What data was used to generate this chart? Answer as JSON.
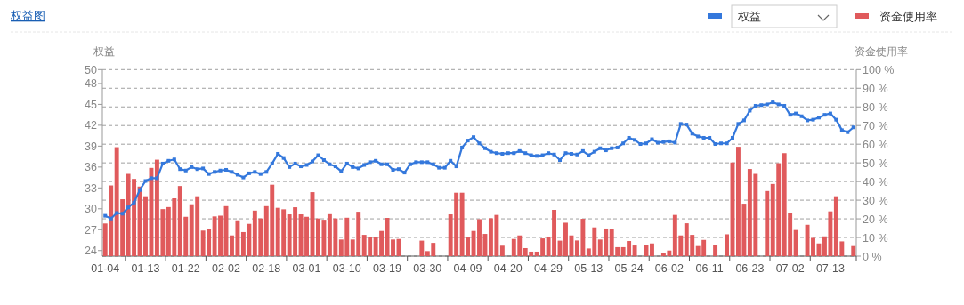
{
  "chart_data": {
    "type": "bar",
    "title": "权益图",
    "ylabel": "权益",
    "y2label": "资金使用率",
    "categories": [
      "01-04",
      null,
      null,
      null,
      null,
      null,
      null,
      "01-13",
      null,
      null,
      null,
      null,
      null,
      null,
      "01-22",
      null,
      null,
      null,
      null,
      null,
      null,
      "02-02",
      null,
      null,
      null,
      null,
      null,
      null,
      "02-18",
      null,
      null,
      null,
      null,
      null,
      null,
      "03-01",
      null,
      null,
      null,
      null,
      null,
      null,
      "03-10",
      null,
      null,
      null,
      null,
      null,
      null,
      "03-19",
      null,
      null,
      null,
      null,
      null,
      null,
      "03-30",
      null,
      null,
      null,
      null,
      null,
      null,
      "04-09",
      null,
      null,
      null,
      null,
      null,
      null,
      "04-20",
      null,
      null,
      null,
      null,
      null,
      null,
      "04-29",
      null,
      null,
      null,
      null,
      null,
      null,
      "05-13",
      null,
      null,
      null,
      null,
      null,
      null,
      "05-24",
      null,
      null,
      null,
      null,
      null,
      null,
      "06-02",
      null,
      null,
      null,
      null,
      null,
      null,
      "06-11",
      null,
      null,
      null,
      null,
      null,
      null,
      "06-23",
      null,
      null,
      null,
      null,
      null,
      null,
      "07-02",
      null,
      null,
      null,
      null,
      null,
      null,
      "07-13",
      null,
      null,
      null,
      null
    ],
    "series": [
      {
        "name": "权益",
        "type": "line",
        "color": "#3478dc",
        "values": [
          29.0,
          28.6,
          29.4,
          29.3,
          30.2,
          30.9,
          32.7,
          34.0,
          34.4,
          34.4,
          36.5,
          36.9,
          37.1,
          35.7,
          35.5,
          36.0,
          35.7,
          35.8,
          35.0,
          35.3,
          35.5,
          35.6,
          35.3,
          34.9,
          34.5,
          35.1,
          35.3,
          35.0,
          35.3,
          36.5,
          37.9,
          37.3,
          36.0,
          36.5,
          36.1,
          36.3,
          36.8,
          37.7,
          37.0,
          36.4,
          36.1,
          35.4,
          36.5,
          36.0,
          35.8,
          36.3,
          36.7,
          36.9,
          36.4,
          36.4,
          35.6,
          35.7,
          35.2,
          36.4,
          36.7,
          36.7,
          36.7,
          36.4,
          35.9,
          35.9,
          36.9,
          36.1,
          38.8,
          39.8,
          40.3,
          39.4,
          38.7,
          38.2,
          38.0,
          37.9,
          38.0,
          38.0,
          38.3,
          38.0,
          37.7,
          37.6,
          37.7,
          38.0,
          37.8,
          37.0,
          38.0,
          37.9,
          37.8,
          38.3,
          37.7,
          38.2,
          38.7,
          38.4,
          38.7,
          38.8,
          39.4,
          40.2,
          39.9,
          39.3,
          39.4,
          40.0,
          39.5,
          39.6,
          39.7,
          39.5,
          42.2,
          42.1,
          40.8,
          40.4,
          40.2,
          40.2,
          39.3,
          39.4,
          39.4,
          40.2,
          42.2,
          42.7,
          44.1,
          44.8,
          44.9,
          45.0,
          45.3,
          45.0,
          44.8,
          43.5,
          43.7,
          43.3,
          42.7,
          42.8,
          43.1,
          43.5,
          43.7,
          42.8,
          41.3,
          41.0,
          41.7
        ]
      },
      {
        "name": "资金使用率",
        "axis": "y2",
        "color": "#e05a5c",
        "values": [
          17.5,
          37.9,
          58.4,
          30.5,
          44.1,
          41.4,
          37.3,
          32.1,
          47.3,
          51.7,
          25.2,
          26.3,
          31.0,
          37.6,
          21.1,
          27.8,
          32.1,
          13.7,
          14.4,
          21.3,
          21.7,
          26.8,
          11.1,
          19.2,
          12.9,
          17.3,
          24.4,
          20.2,
          26.8,
          38.3,
          25.9,
          25.1,
          22.4,
          26.2,
          22.4,
          21.1,
          34.3,
          20.2,
          19.5,
          22.5,
          20.2,
          8.9,
          20.6,
          8.9,
          23.8,
          11.4,
          10.3,
          10.3,
          13.5,
          20.5,
          8.9,
          9.2,
          null,
          null,
          null,
          8.3,
          2.7,
          7.1,
          null,
          null,
          22.4,
          34.0,
          34.0,
          10.0,
          13.5,
          19.8,
          11.9,
          20.3,
          22.1,
          5.6,
          null,
          9.2,
          11.1,
          4.3,
          2.4,
          2.4,
          9.5,
          10.5,
          24.8,
          8.3,
          17.9,
          11.1,
          8.4,
          20.0,
          4.1,
          15.4,
          8.9,
          14.8,
          14.3,
          4.8,
          4.8,
          8.1,
          5.7,
          null,
          5.9,
          6.8,
          null,
          1.9,
          3.0,
          22.1,
          11.1,
          17.6,
          11.4,
          5.4,
          8.7,
          null,
          5.9,
          null,
          11.7,
          50.2,
          58.6,
          28.1,
          46.7,
          44.1,
          null,
          34.9,
          38.7,
          49.8,
          55.2,
          22.9,
          14.0,
          null,
          16.8,
          9.8,
          6.8,
          10.6,
          24.0,
          32.1,
          7.9,
          null,
          5.4
        ]
      }
    ],
    "ylim": [
      23.2,
      50
    ],
    "yticks": [
      24,
      27,
      30,
      33,
      36,
      39,
      42,
      45,
      48,
      50
    ],
    "y2lim": [
      0,
      100
    ],
    "y2ticks": [
      {
        "value": 0,
        "label": "0 %"
      },
      {
        "value": 10,
        "label": "10 %"
      },
      {
        "value": 20,
        "label": "20 %"
      },
      {
        "value": 30,
        "label": "30 %"
      },
      {
        "value": 40,
        "label": "40 %"
      },
      {
        "value": 50,
        "label": "50 %"
      },
      {
        "value": 60,
        "label": "60 %"
      },
      {
        "value": 70,
        "label": "70 %"
      },
      {
        "value": 80,
        "label": "80 %"
      },
      {
        "value": 90,
        "label": "90 %"
      },
      {
        "value": 100,
        "label": "100 %"
      }
    ],
    "grid": "y2",
    "legend": "top right",
    "marker": "square",
    "line_style": "solid"
  }
}
